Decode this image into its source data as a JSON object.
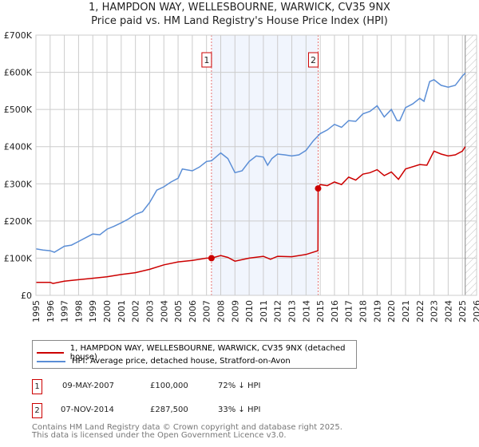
{
  "chart_data": {
    "type": "line",
    "title": "1, HAMPDON WAY, WELLESBOURNE, WARWICK, CV35 9NX",
    "subtitle": "Price paid vs. HM Land Registry's House Price Index (HPI)",
    "xlim": [
      1995,
      2026
    ],
    "ylim": [
      0,
      700000
    ],
    "yticks": [
      {
        "v": 0,
        "label": "£0"
      },
      {
        "v": 100000,
        "label": "£100K"
      },
      {
        "v": 200000,
        "label": "£200K"
      },
      {
        "v": 300000,
        "label": "£300K"
      },
      {
        "v": 400000,
        "label": "£400K"
      },
      {
        "v": 500000,
        "label": "£500K"
      },
      {
        "v": 600000,
        "label": "£600K"
      },
      {
        "v": 700000,
        "label": "£700K"
      }
    ],
    "xticks": [
      "1995",
      "1996",
      "1997",
      "1998",
      "1999",
      "2000",
      "2001",
      "2002",
      "2003",
      "2004",
      "2005",
      "2006",
      "2007",
      "2008",
      "2009",
      "2010",
      "2011",
      "2012",
      "2013",
      "2014",
      "2015",
      "2016",
      "2017",
      "2018",
      "2019",
      "2020",
      "2021",
      "2022",
      "2023",
      "2024",
      "2025",
      "2026"
    ],
    "grid": true,
    "shaded_range": [
      2007.35,
      2014.85
    ],
    "forecast_hatch_from": 2025.2,
    "series": [
      {
        "name": "1, HAMPDON WAY, WELLESBOURNE, WARWICK, CV35 9NX (detached house)",
        "color": "#cc0000",
        "x": [
          1995,
          1996,
          1996.2,
          1997,
          1998,
          1999,
          2000,
          2001,
          2002,
          2003,
          2004,
          2005,
          2006,
          2007,
          2007.35,
          2008,
          2008.5,
          2009,
          2010,
          2011,
          2011.5,
          2012,
          2013,
          2014,
          2014.84,
          2014.85,
          2015,
          2015.5,
          2016,
          2016.5,
          2017,
          2017.5,
          2018,
          2018.5,
          2019,
          2019.5,
          2020,
          2020.5,
          2021,
          2022,
          2022.5,
          2023,
          2023.5,
          2024,
          2024.5,
          2025,
          2025.2
        ],
        "y": [
          35000,
          35000,
          32000,
          38000,
          42000,
          46000,
          50000,
          56000,
          61000,
          70000,
          82000,
          90000,
          94000,
          100000,
          100000,
          107000,
          102000,
          92000,
          100000,
          105000,
          97000,
          105000,
          104000,
          110000,
          120000,
          287500,
          298000,
          295000,
          305000,
          298000,
          318000,
          310000,
          326000,
          330000,
          338000,
          322000,
          332000,
          312000,
          340000,
          352000,
          350000,
          388000,
          380000,
          375000,
          378000,
          388000,
          400000
        ]
      },
      {
        "name": "HPI: Average price, detached house, Stratford-on-Avon",
        "color": "#5b8ed6",
        "x": [
          1995,
          1995.5,
          1996,
          1996.3,
          1997,
          1997.5,
          1998,
          1998.5,
          1999,
          1999.5,
          2000,
          2000.5,
          2001,
          2001.5,
          2002,
          2002.5,
          2003,
          2003.5,
          2004,
          2004.5,
          2005,
          2005.3,
          2006,
          2006.5,
          2007,
          2007.35,
          2008,
          2008.5,
          2009,
          2009.5,
          2010,
          2010.5,
          2011,
          2011.3,
          2011.6,
          2012,
          2012.5,
          2013,
          2013.5,
          2014,
          2014.5,
          2015,
          2015.5,
          2016,
          2016.5,
          2017,
          2017.5,
          2018,
          2018.5,
          2019,
          2019.5,
          2020,
          2020.4,
          2020.6,
          2021,
          2021.5,
          2022,
          2022.3,
          2022.7,
          2023,
          2023.5,
          2024,
          2024.5,
          2025,
          2025.2
        ],
        "y": [
          125000,
          122000,
          120000,
          116000,
          132000,
          135000,
          145000,
          155000,
          165000,
          163000,
          178000,
          186000,
          195000,
          205000,
          218000,
          225000,
          250000,
          283000,
          292000,
          305000,
          315000,
          340000,
          335000,
          345000,
          360000,
          362000,
          383000,
          368000,
          330000,
          335000,
          360000,
          375000,
          372000,
          350000,
          368000,
          380000,
          378000,
          375000,
          378000,
          390000,
          415000,
          435000,
          445000,
          460000,
          452000,
          470000,
          468000,
          488000,
          495000,
          510000,
          480000,
          500000,
          470000,
          470000,
          505000,
          515000,
          530000,
          522000,
          575000,
          580000,
          565000,
          560000,
          565000,
          590000,
          598000
        ]
      }
    ],
    "markers": [
      {
        "label": "1",
        "x": 2007.35,
        "y": 100000
      },
      {
        "label": "2",
        "x": 2014.85,
        "y": 287500
      }
    ]
  },
  "legend": {
    "red": "1, HAMPDON WAY, WELLESBOURNE, WARWICK, CV35 9NX (detached house)",
    "blue": "HPI: Average price, detached house, Stratford-on-Avon"
  },
  "transactions": [
    {
      "num": "1",
      "date": "09-MAY-2007",
      "price": "£100,000",
      "hpi": "72% ↓ HPI"
    },
    {
      "num": "2",
      "date": "07-NOV-2014",
      "price": "£287,500",
      "hpi": "33% ↓ HPI"
    }
  ],
  "footer": {
    "line1": "Contains HM Land Registry data © Crown copyright and database right 2025.",
    "line2": "This data is licensed under the Open Government Licence v3.0."
  }
}
